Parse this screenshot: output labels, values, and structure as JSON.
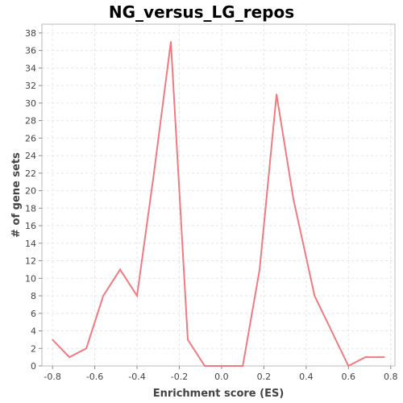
{
  "chart_data": {
    "type": "line",
    "title": "NG_versus_LG_repos",
    "xlabel": "Enrichment score (ES)",
    "ylabel": "# of gene sets",
    "xlim": [
      -0.85,
      0.82
    ],
    "ylim": [
      0,
      39
    ],
    "x_ticks": [
      "-0.8",
      "-0.6",
      "-0.4",
      "-0.2",
      "0.0",
      "0.2",
      "0.4",
      "0.6",
      "0.8"
    ],
    "y_ticks": [
      "0",
      "2",
      "4",
      "6",
      "8",
      "10",
      "12",
      "14",
      "16",
      "18",
      "20",
      "22",
      "24",
      "26",
      "28",
      "30",
      "32",
      "34",
      "36",
      "38"
    ],
    "grid": true,
    "series": [
      {
        "color": "#f07a80",
        "x": [
          -0.8,
          -0.72,
          -0.64,
          -0.56,
          -0.48,
          -0.4,
          -0.32,
          -0.24,
          -0.16,
          -0.08,
          0.0,
          0.1,
          0.18,
          0.26,
          0.34,
          0.44,
          0.52,
          0.6,
          0.68,
          0.77
        ],
        "y": [
          3,
          1,
          2,
          8,
          11,
          8,
          22,
          37,
          3,
          0,
          0,
          0,
          11,
          31,
          19,
          8,
          4,
          0,
          1,
          1
        ]
      }
    ]
  }
}
